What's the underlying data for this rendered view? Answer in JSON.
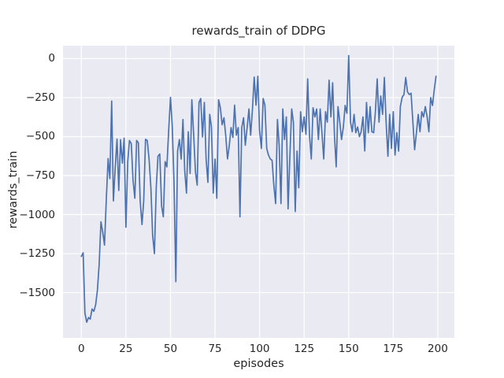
{
  "chart_data": {
    "type": "line",
    "title": "rewards_train of DDPG",
    "xlabel": "episodes",
    "ylabel": "rewards_train",
    "legend": "none",
    "grid": true,
    "style": "seaborn-darkgrid",
    "x_ticks": [
      0,
      25,
      50,
      75,
      100,
      125,
      150,
      175,
      200
    ],
    "x_tick_labels": [
      "0",
      "25",
      "50",
      "75",
      "100",
      "125",
      "150",
      "175",
      "200"
    ],
    "y_ticks": [
      0,
      -250,
      -500,
      -750,
      -1000,
      -1250,
      -1500
    ],
    "y_tick_labels": [
      "0",
      "−250",
      "−500",
      "−750",
      "−1000",
      "−1250",
      "−1500"
    ],
    "xlim": [
      -10.3,
      209.3
    ],
    "ylim": [
      -1790,
      83
    ],
    "x_start": 0,
    "x_step": 1,
    "colors": {
      "line": "#4c72b0",
      "axes_background": "#eaeaf2",
      "gridline": "#ffffff",
      "figure_background": "#ffffff",
      "text": "#262626"
    },
    "series": [
      {
        "name": "rewards_train",
        "values": [
          -1268,
          -1245,
          -1630,
          -1690,
          -1660,
          -1670,
          -1605,
          -1620,
          -1580,
          -1485,
          -1320,
          -1046,
          -1114,
          -1196,
          -900,
          -641,
          -769,
          -272,
          -912,
          -700,
          -516,
          -845,
          -520,
          -670,
          -510,
          -1081,
          -660,
          -525,
          -545,
          -778,
          -895,
          -525,
          -540,
          -912,
          -1064,
          -912,
          -517,
          -525,
          -644,
          -828,
          -1131,
          -1250,
          -828,
          -626,
          -611,
          -946,
          -1014,
          -660,
          -694,
          -460,
          -248,
          -430,
          -800,
          -1430,
          -593,
          -519,
          -644,
          -390,
          -721,
          -862,
          -469,
          -737,
          -264,
          -485,
          -727,
          -811,
          -281,
          -256,
          -502,
          -281,
          -644,
          -793,
          -357,
          -438,
          -862,
          -644,
          -895,
          -264,
          -315,
          -424,
          -379,
          -491,
          -643,
          -555,
          -442,
          -505,
          -298,
          -491,
          -442,
          -1014,
          -442,
          -379,
          -555,
          -443,
          -323,
          -491,
          -323,
          -118,
          -298,
          -113,
          -460,
          -576,
          -256,
          -298,
          -576,
          -618,
          -643,
          -652,
          -811,
          -929,
          -390,
          -555,
          -929,
          -323,
          -519,
          -374,
          -963,
          -626,
          -323,
          -407,
          -980,
          -593,
          -828,
          -340,
          -469,
          -374,
          -485,
          -130,
          -490,
          -643,
          -315,
          -374,
          -323,
          -519,
          -323,
          -475,
          -643,
          -340,
          -407,
          -138,
          -374,
          -155,
          -490,
          -694,
          -307,
          -407,
          -519,
          -438,
          -300,
          -350,
          20,
          -407,
          -469,
          -357,
          -475,
          -438,
          -500,
          -469,
          -374,
          -592,
          -281,
          -475,
          -307,
          -469,
          -475,
          -340,
          -130,
          -407,
          -239,
          -357,
          -121,
          -407,
          -626,
          -357,
          -576,
          -340,
          -618,
          -475,
          -593,
          -307,
          -247,
          -230,
          -121,
          -214,
          -230,
          -222,
          -407,
          -584,
          -475,
          -357,
          -469,
          -340,
          -374,
          -307,
          -374,
          -469,
          -250,
          -300,
          -200,
          -113
        ]
      }
    ]
  }
}
